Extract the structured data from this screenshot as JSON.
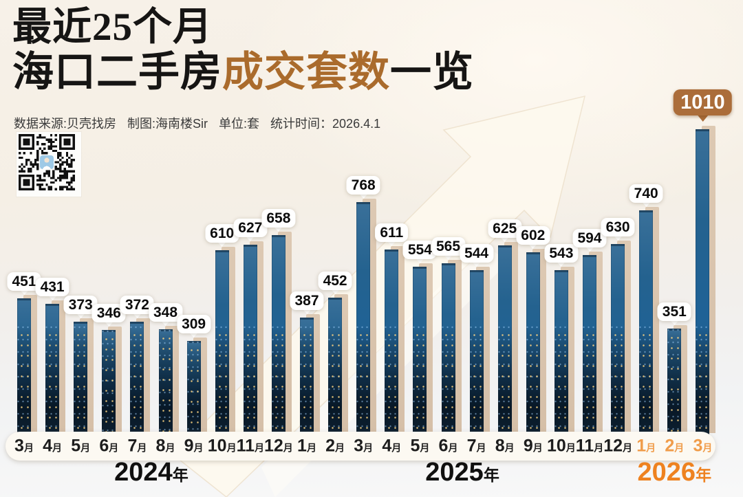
{
  "header": {
    "title_line1": "最近25个月",
    "title_line2_part1": "海口二手房",
    "title_line2_accent": "成交套数",
    "title_line2_part2": "一览",
    "meta_source": "数据来源:贝壳找房",
    "meta_author": "制图:海南楼Sir",
    "meta_unit": "单位:套",
    "meta_time": "统计时间：2026.4.1"
  },
  "chart_data": {
    "type": "bar",
    "title": "最近25个月海口二手房成交套数一览",
    "unit": "套",
    "categories": [
      "3月",
      "4月",
      "5月",
      "6月",
      "7月",
      "8月",
      "9月",
      "10月",
      "11月",
      "12月",
      "1月",
      "2月",
      "3月",
      "4月",
      "5月",
      "6月",
      "7月",
      "8月",
      "9月",
      "10月",
      "11月",
      "12月",
      "1月",
      "2月",
      "3月"
    ],
    "values": [
      451,
      431,
      373,
      346,
      372,
      348,
      309,
      610,
      627,
      658,
      387,
      452,
      768,
      611,
      554,
      565,
      544,
      625,
      602,
      543,
      594,
      630,
      740,
      351,
      1010
    ],
    "ylim": [
      0,
      1010
    ],
    "highlight_index": 24,
    "accent_month_indices": [
      22,
      23,
      24
    ],
    "years": [
      {
        "label": "2024年",
        "from_index": 0,
        "to_index": 9,
        "accent": false
      },
      {
        "label": "2025年",
        "from_index": 10,
        "to_index": 21,
        "accent": false
      },
      {
        "label": "2026年",
        "from_index": 22,
        "to_index": 24,
        "accent": true
      }
    ],
    "colors": {
      "bar": "#1f6296",
      "bar_shadow": "#d9c4ae",
      "value_bubble": "#ffffff",
      "highlight_badge": "#ab6d3a",
      "axis_accent": "#f09c4a",
      "year_accent": "#ee8220",
      "title_accent": "#aa6b2c"
    }
  }
}
